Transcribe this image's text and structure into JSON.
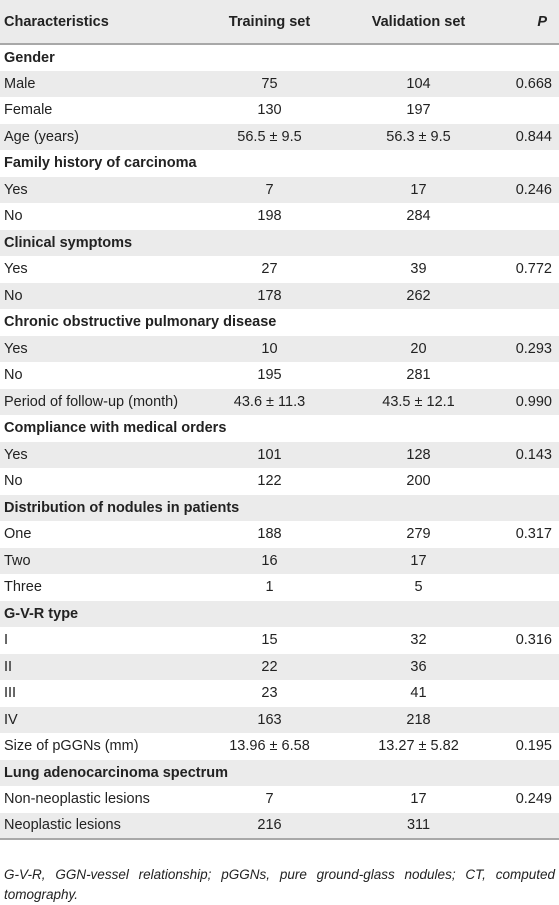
{
  "table": {
    "headers": [
      "Characteristics",
      "Training set",
      "Validation set",
      "P"
    ],
    "rows": [
      {
        "kind": "section",
        "label": "Gender",
        "train": "",
        "valid": "",
        "p": ""
      },
      {
        "kind": "data",
        "label": "Male",
        "train": "75",
        "valid": "104",
        "p": "0.668"
      },
      {
        "kind": "data",
        "label": "Female",
        "train": "130",
        "valid": "197",
        "p": ""
      },
      {
        "kind": "data",
        "label": "Age (years)",
        "train": "56.5 ± 9.5",
        "valid": "56.3 ± 9.5",
        "p": "0.844"
      },
      {
        "kind": "section",
        "label": "Family history of carcinoma",
        "train": "",
        "valid": "",
        "p": ""
      },
      {
        "kind": "data",
        "label": "Yes",
        "train": "7",
        "valid": "17",
        "p": "0.246"
      },
      {
        "kind": "data",
        "label": "No",
        "train": "198",
        "valid": "284",
        "p": ""
      },
      {
        "kind": "section",
        "label": "Clinical symptoms",
        "train": "",
        "valid": "",
        "p": ""
      },
      {
        "kind": "data",
        "label": "Yes",
        "train": "27",
        "valid": "39",
        "p": "0.772"
      },
      {
        "kind": "data",
        "label": "No",
        "train": "178",
        "valid": "262",
        "p": ""
      },
      {
        "kind": "section",
        "label": "Chronic obstructive pulmonary disease",
        "train": "",
        "valid": "",
        "p": ""
      },
      {
        "kind": "data",
        "label": "Yes",
        "train": "10",
        "valid": "20",
        "p": "0.293"
      },
      {
        "kind": "data",
        "label": "No",
        "train": "195",
        "valid": "281",
        "p": ""
      },
      {
        "kind": "data",
        "label": "Period of follow-up (month)",
        "train": "43.6 ± 11.3",
        "valid": "43.5 ± 12.1",
        "p": "0.990"
      },
      {
        "kind": "section",
        "label": "Compliance with medical orders",
        "train": "",
        "valid": "",
        "p": ""
      },
      {
        "kind": "data",
        "label": "Yes",
        "train": "101",
        "valid": "128",
        "p": "0.143"
      },
      {
        "kind": "data",
        "label": "No",
        "train": "122",
        "valid": "200",
        "p": ""
      },
      {
        "kind": "section",
        "label": "Distribution of nodules in patients",
        "train": "",
        "valid": "",
        "p": ""
      },
      {
        "kind": "data",
        "label": "One",
        "train": "188",
        "valid": "279",
        "p": "0.317"
      },
      {
        "kind": "data",
        "label": "Two",
        "train": "16",
        "valid": "17",
        "p": ""
      },
      {
        "kind": "data",
        "label": "Three",
        "train": "1",
        "valid": "5",
        "p": ""
      },
      {
        "kind": "section",
        "label": "G-V-R type",
        "train": "",
        "valid": "",
        "p": ""
      },
      {
        "kind": "data",
        "label": "I",
        "train": "15",
        "valid": "32",
        "p": "0.316"
      },
      {
        "kind": "data",
        "label": "II",
        "train": "22",
        "valid": "36",
        "p": ""
      },
      {
        "kind": "data",
        "label": "III",
        "train": "23",
        "valid": "41",
        "p": ""
      },
      {
        "kind": "data",
        "label": "IV",
        "train": "163",
        "valid": "218",
        "p": ""
      },
      {
        "kind": "data",
        "label": "Size of pGGNs (mm)",
        "train": "13.96 ± 6.58",
        "valid": "13.27 ± 5.82",
        "p": "0.195"
      },
      {
        "kind": "section",
        "label": "Lung adenocarcinoma spectrum",
        "train": "",
        "valid": "",
        "p": ""
      },
      {
        "kind": "data",
        "label": "Non-neoplastic lesions",
        "train": "7",
        "valid": "17",
        "p": "0.249"
      },
      {
        "kind": "data",
        "label": "Neoplastic lesions",
        "train": "216",
        "valid": "311",
        "p": ""
      }
    ]
  },
  "footnote": "G-V-R, GGN-vessel relationship; pGGNs, pure ground-glass nodules; CT, computed tomography.",
  "colors": {
    "stripe": "#ebebeb",
    "rule": "#a8a8a8",
    "text": "#222222"
  }
}
